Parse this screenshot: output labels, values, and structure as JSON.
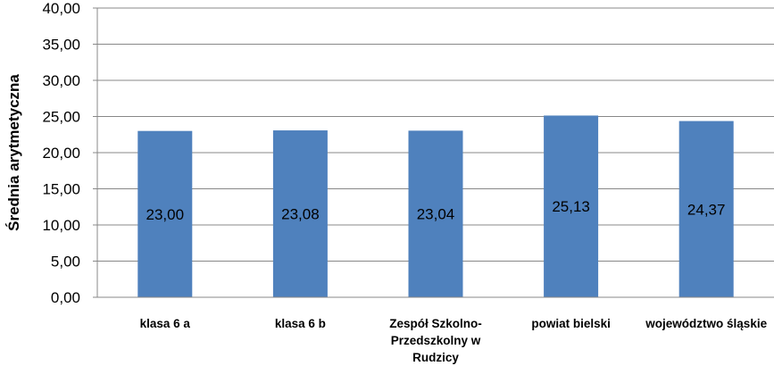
{
  "chart_data": {
    "type": "bar",
    "ylabel": "Średnia arytmetyczna",
    "xlabel": "",
    "ylim": [
      0,
      40
    ],
    "y_ticks": [
      "0,00",
      "5,00",
      "10,00",
      "15,00",
      "20,00",
      "25,00",
      "30,00",
      "35,00",
      "40,00"
    ],
    "grid": true,
    "legend": "none",
    "bar_color": "#4F81BD",
    "categories": [
      [
        "klasa 6 a"
      ],
      [
        "klasa 6 b"
      ],
      [
        "Zespół Szkolno-",
        "Przedszkolny w",
        "Rudzicy"
      ],
      [
        "powiat bielski"
      ],
      [
        "województwo śląskie"
      ]
    ],
    "values": [
      23.0,
      23.08,
      23.04,
      25.13,
      24.37
    ],
    "data_labels": [
      "23,00",
      "23,08",
      "23,04",
      "25,13",
      "24,37"
    ]
  }
}
